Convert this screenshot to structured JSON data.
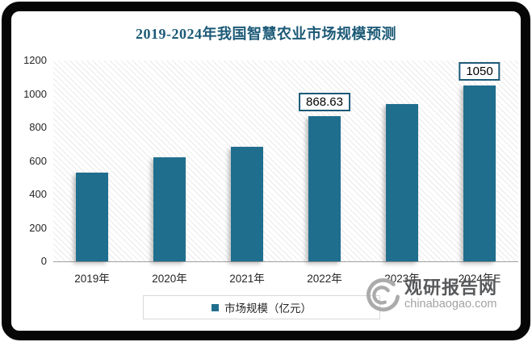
{
  "chart_data": {
    "type": "bar",
    "title": "2019-2024年我国智慧农业市场规模预测",
    "categories": [
      "2019年",
      "2020年",
      "2021年",
      "2022年",
      "2023年",
      "2024年E"
    ],
    "values": [
      530,
      620,
      683,
      868.63,
      940,
      1050
    ],
    "data_labels": [
      null,
      null,
      null,
      "868.63",
      null,
      "1050"
    ],
    "ylim": [
      0,
      1200
    ],
    "yticks": [
      0,
      200,
      400,
      600,
      800,
      1000,
      1200
    ],
    "grid": false,
    "plot_background": "diagonal-hatch",
    "legend_position": "bottom",
    "legend": [
      "市场规模（亿元）"
    ],
    "bar_color": "#206e8e",
    "title_color": "#1c5a77",
    "label_box_border_color": "#1c5a77"
  },
  "watermark": {
    "logo": "swirl-logo",
    "brand": "观研报告网",
    "domain": "chinabaogao.com"
  }
}
